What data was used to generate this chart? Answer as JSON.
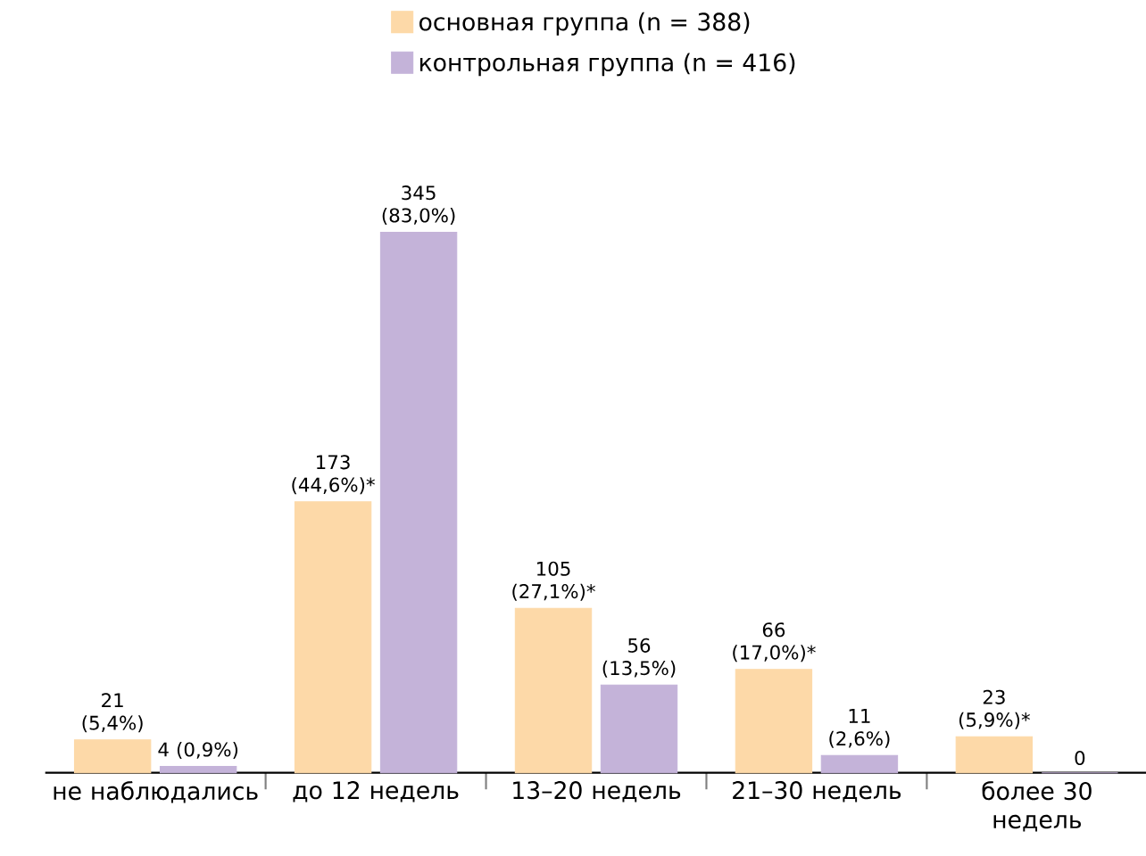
{
  "chart_data": {
    "type": "bar",
    "categories": [
      "не наблюдались",
      "до 12 недель",
      "13–20 недель",
      "21–30 недель",
      "более 30 недель"
    ],
    "series": [
      {
        "name": "основная группа (n = 388)",
        "color": "#fdd9a8",
        "values": [
          21,
          173,
          105,
          66,
          23
        ],
        "value_labels": [
          "21 (5,4%)",
          "173 (44,6%)*",
          "105 (27,1%)*",
          "66 (17,0%)*",
          "23 (5,9%)*"
        ]
      },
      {
        "name": "контрольная группа (n = 416)",
        "color": "#c4b3d9",
        "values": [
          4,
          345,
          56,
          11,
          0
        ],
        "value_labels": [
          "4 (0,9%)",
          "345 (83,0%)",
          "56 (13,5%)",
          "11 (2,6%)",
          "0"
        ]
      }
    ],
    "legend": "top"
  }
}
